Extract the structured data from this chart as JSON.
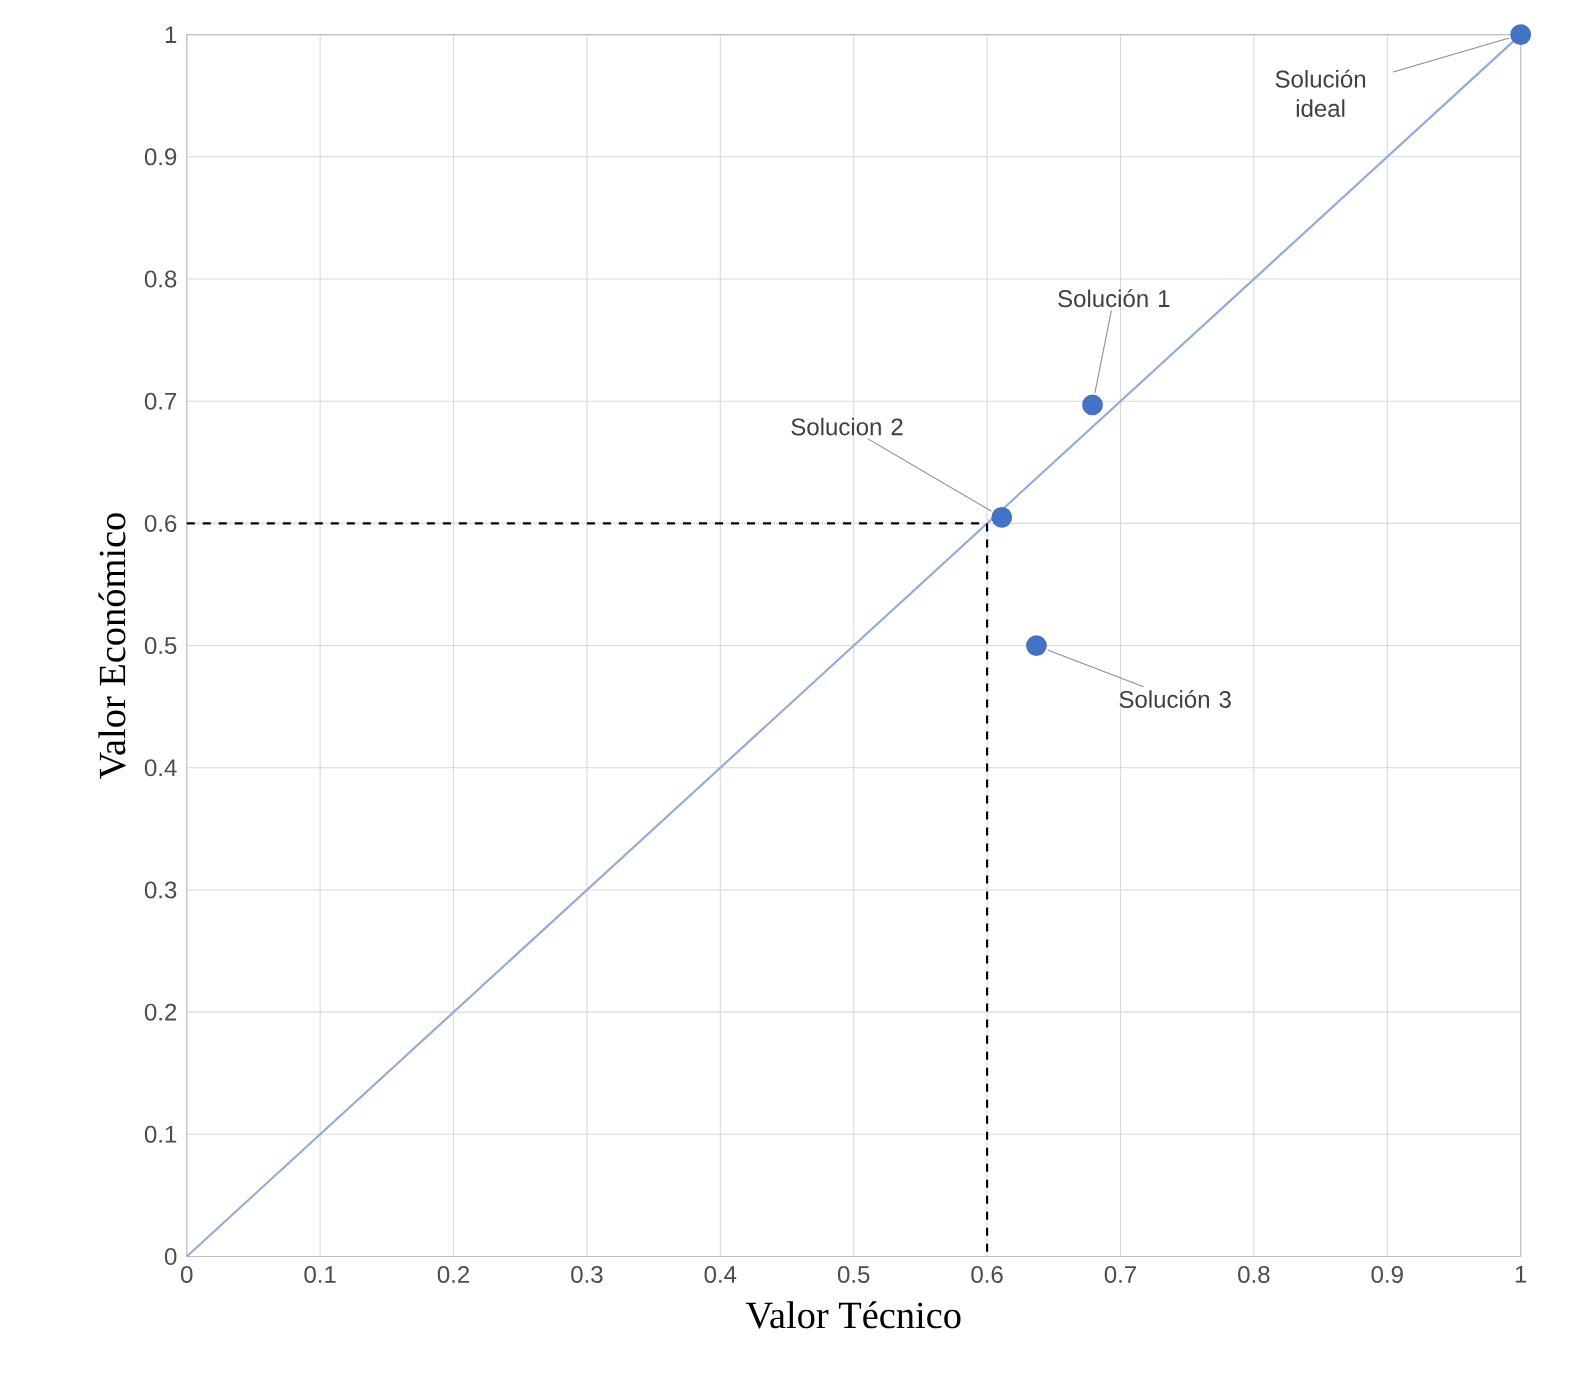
{
  "chart_data": {
    "type": "scatter",
    "xlabel": "Valor Técnico",
    "ylabel": "Valor Económico",
    "xlim": [
      0,
      1
    ],
    "ylim": [
      0,
      1
    ],
    "xticks": [
      0,
      0.1,
      0.2,
      0.3,
      0.4,
      0.5,
      0.6,
      0.7,
      0.8,
      0.9,
      1
    ],
    "yticks": [
      0,
      0.1,
      0.2,
      0.3,
      0.4,
      0.5,
      0.6,
      0.7,
      0.8,
      0.9,
      1
    ],
    "grid": true,
    "series": [
      {
        "type": "line",
        "color": "#8faadc",
        "x": [
          0,
          1
        ],
        "values": [
          0,
          1
        ],
        "marker": "none",
        "line_style": "solid"
      },
      {
        "type": "line",
        "color": "#000000",
        "x": [
          0,
          0.6,
          0.6
        ],
        "values": [
          0.6,
          0.6,
          0
        ],
        "marker": "none",
        "line_style": "dashed"
      },
      {
        "color": "#4472c4",
        "x": [
          1,
          0.679,
          0.611,
          0.637
        ],
        "values": [
          1,
          0.697,
          0.605,
          0.5
        ],
        "marker": "circle"
      }
    ],
    "annotations": [
      {
        "text": "Solución ideal",
        "x": 1,
        "y": 1
      },
      {
        "text": "Solución 1",
        "x": 0.679,
        "y": 0.697
      },
      {
        "text": "Solucion 2",
        "x": 0.611,
        "y": 0.605
      },
      {
        "text": "Solución 3",
        "x": 0.637,
        "y": 0.5
      }
    ]
  }
}
